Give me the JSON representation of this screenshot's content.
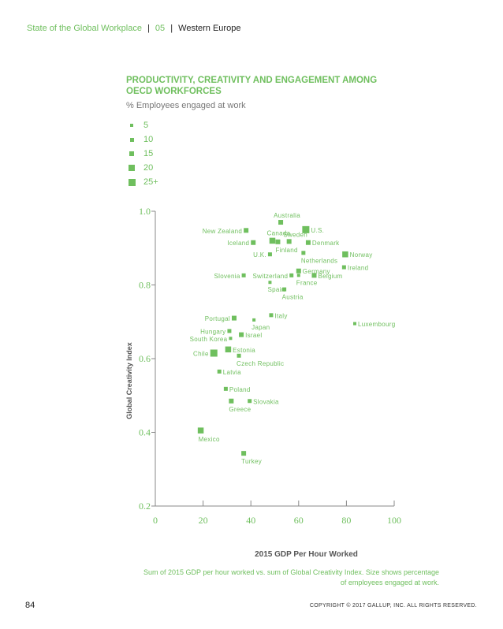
{
  "header": {
    "report": "State of the Global Workplace",
    "section": "05",
    "region": "Western Europe"
  },
  "chart_data": {
    "type": "scatter",
    "title": "PRODUCTIVITY, CREATIVITY AND ENGAGEMENT AMONG OECD WORKFORCES",
    "subtitle": "% Employees engaged at work",
    "xlabel": "2015 GDP Per Hour Worked",
    "ylabel": "Global Creativity Index",
    "xlim": [
      0,
      100
    ],
    "ylim": [
      0.2,
      1.0
    ],
    "xticks": [
      0,
      20,
      40,
      60,
      80,
      100
    ],
    "yticks": [
      0.2,
      0.4,
      0.6,
      0.8,
      1.0
    ],
    "xtick_labels": [
      "0",
      "20",
      "40",
      "60",
      "80",
      "100"
    ],
    "ytick_labels": [
      "0.2",
      "0.4",
      "0.6",
      "0.8",
      "1.0"
    ],
    "size_legend": [
      "5",
      "10",
      "15",
      "20",
      "25+"
    ],
    "color": "#6fbf5e",
    "points": [
      {
        "label": "Australia",
        "x": 52.5,
        "y": 0.97,
        "size": 15,
        "label_pos": "above"
      },
      {
        "label": "New Zealand",
        "x": 38,
        "y": 0.948,
        "size": 15,
        "label_pos": "left"
      },
      {
        "label": "U.S.",
        "x": 63,
        "y": 0.95,
        "size": 25,
        "label_pos": "right"
      },
      {
        "label": "Canada",
        "x": 49,
        "y": 0.92,
        "size": 20,
        "label_pos": "above"
      },
      {
        "label": "Sweden",
        "x": 56,
        "y": 0.918,
        "size": 15,
        "label_pos": "above"
      },
      {
        "label": "Finland",
        "x": 51.3,
        "y": 0.917,
        "size": 15,
        "label_pos": "below"
      },
      {
        "label": "Iceland",
        "x": 41,
        "y": 0.915,
        "size": 15,
        "label_pos": "left"
      },
      {
        "label": "Denmark",
        "x": 64,
        "y": 0.915,
        "size": 15,
        "label_pos": "right"
      },
      {
        "label": "U.K.",
        "x": 48,
        "y": 0.883,
        "size": 10,
        "label_pos": "left"
      },
      {
        "label": "Netherlands",
        "x": 62,
        "y": 0.887,
        "size": 10,
        "label_pos": "below"
      },
      {
        "label": "Norway",
        "x": 79.5,
        "y": 0.883,
        "size": 20,
        "label_pos": "right"
      },
      {
        "label": "Ireland",
        "x": 79,
        "y": 0.848,
        "size": 10,
        "label_pos": "right"
      },
      {
        "label": "Germany",
        "x": 60,
        "y": 0.838,
        "size": 15,
        "label_pos": "right"
      },
      {
        "label": "Slovenia",
        "x": 37,
        "y": 0.826,
        "size": 10,
        "label_pos": "left"
      },
      {
        "label": "Switzerland",
        "x": 57,
        "y": 0.826,
        "size": 10,
        "label_pos": "left"
      },
      {
        "label": "France",
        "x": 60,
        "y": 0.826,
        "size": 5,
        "label_pos": "below"
      },
      {
        "label": "Belgium",
        "x": 66.5,
        "y": 0.826,
        "size": 15,
        "label_pos": "right"
      },
      {
        "label": "Spain",
        "x": 48,
        "y": 0.807,
        "size": 5,
        "label_pos": "below"
      },
      {
        "label": "Austria",
        "x": 54,
        "y": 0.788,
        "size": 10,
        "label_pos": "below"
      },
      {
        "label": "Italy",
        "x": 48.5,
        "y": 0.718,
        "size": 10,
        "label_pos": "right"
      },
      {
        "label": "Portugal",
        "x": 33,
        "y": 0.71,
        "size": 15,
        "label_pos": "left"
      },
      {
        "label": "Japan",
        "x": 41.3,
        "y": 0.705,
        "size": 5,
        "label_pos": "below"
      },
      {
        "label": "Luxembourg",
        "x": 83.5,
        "y": 0.695,
        "size": 5,
        "label_pos": "right"
      },
      {
        "label": "Hungary",
        "x": 31,
        "y": 0.675,
        "size": 10,
        "label_pos": "left"
      },
      {
        "label": "Israel",
        "x": 36,
        "y": 0.665,
        "size": 15,
        "label_pos": "right"
      },
      {
        "label": "South Korea",
        "x": 31.5,
        "y": 0.655,
        "size": 5,
        "label_pos": "left"
      },
      {
        "label": "Estonia",
        "x": 30.5,
        "y": 0.625,
        "size": 20,
        "label_pos": "right"
      },
      {
        "label": "Chile",
        "x": 24.5,
        "y": 0.615,
        "size": 25,
        "label_pos": "left"
      },
      {
        "label": "Czech Republic",
        "x": 35,
        "y": 0.608,
        "size": 10,
        "label_pos": "below"
      },
      {
        "label": "Latvia",
        "x": 26.8,
        "y": 0.565,
        "size": 10,
        "label_pos": "right"
      },
      {
        "label": "Poland",
        "x": 29.5,
        "y": 0.518,
        "size": 10,
        "label_pos": "right"
      },
      {
        "label": "Greece",
        "x": 31.8,
        "y": 0.485,
        "size": 15,
        "label_pos": "below"
      },
      {
        "label": "Slovakia",
        "x": 39.5,
        "y": 0.485,
        "size": 10,
        "label_pos": "right"
      },
      {
        "label": "Mexico",
        "x": 19,
        "y": 0.405,
        "size": 20,
        "label_pos": "below"
      },
      {
        "label": "Turkey",
        "x": 37,
        "y": 0.343,
        "size": 15,
        "label_pos": "below"
      }
    ]
  },
  "caption": "Sum of 2015 GDP per hour worked vs. sum of Global Creativity Index. Size shows percentage of employees engaged at work.",
  "page_number": "84",
  "copyright": "COPYRIGHT © 2017 GALLUP, INC. ALL RIGHTS RESERVED."
}
